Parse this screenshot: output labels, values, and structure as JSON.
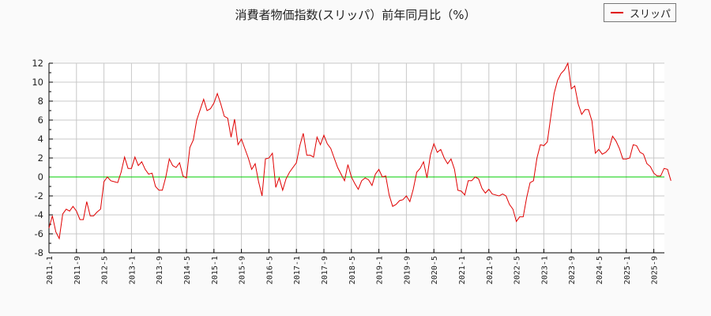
{
  "chart_data": {
    "type": "line",
    "title": "消費者物価指数(スリッパ）前年同月比（%）",
    "xlabel": "",
    "ylabel": "",
    "ylim": [
      -8,
      12
    ],
    "yticks": [
      -8,
      -6,
      -4,
      -2,
      0,
      2,
      4,
      6,
      8,
      10,
      12
    ],
    "xtick_labels": [
      "2011-1",
      "2011-9",
      "2012-5",
      "2013-1",
      "2013-9",
      "2014-5",
      "2015-1",
      "2015-9",
      "2016-5",
      "2017-1",
      "2017-9",
      "2018-5",
      "2019-1",
      "2019-9",
      "2020-5",
      "2021-1",
      "2021-9",
      "2022-5",
      "2023-1",
      "2023-9",
      "2024-5",
      "2025-1",
      "2025-9"
    ],
    "x_start": "2011-1",
    "x_step": "1 month",
    "grid": true,
    "legend_position": "top-right",
    "reference_line": {
      "y": 0,
      "color": "#00cc00"
    },
    "series": [
      {
        "name": "スリッパ",
        "color": "#e00000",
        "values": [
          -5.4,
          -4.1,
          -5.8,
          -6.5,
          -3.9,
          -3.4,
          -3.6,
          -3.1,
          -3.6,
          -4.5,
          -4.5,
          -2.6,
          -4.1,
          -4.1,
          -3.7,
          -3.4,
          -0.5,
          0.0,
          -0.4,
          -0.5,
          -0.6,
          0.5,
          2.1,
          0.9,
          0.9,
          2.1,
          1.2,
          1.6,
          0.8,
          0.3,
          0.4,
          -1.0,
          -1.4,
          -1.4,
          0.0,
          1.9,
          1.2,
          1.0,
          1.5,
          0.1,
          -0.1,
          3.1,
          3.9,
          6.0,
          7.1,
          8.2,
          7.0,
          7.2,
          7.8,
          8.8,
          7.7,
          6.4,
          6.2,
          4.2,
          6.1,
          3.4,
          4.0,
          3.0,
          2.0,
          0.8,
          1.4,
          -0.5,
          -2.0,
          1.9,
          2.0,
          2.5,
          -1.1,
          -0.1,
          -1.4,
          -0.2,
          0.5,
          1.0,
          1.5,
          3.3,
          4.6,
          2.3,
          2.3,
          2.1,
          4.2,
          3.4,
          4.4,
          3.5,
          3.0,
          2.0,
          1.0,
          0.3,
          -0.4,
          1.3,
          0.0,
          -0.7,
          -1.3,
          -0.4,
          -0.1,
          -0.3,
          -0.9,
          0.3,
          0.8,
          0.0,
          0.1,
          -1.9,
          -3.1,
          -2.9,
          -2.5,
          -2.4,
          -2.0,
          -2.6,
          -1.3,
          0.5,
          0.9,
          1.6,
          -0.1,
          2.3,
          3.5,
          2.6,
          2.9,
          2.0,
          1.4,
          1.9,
          0.8,
          -1.4,
          -1.5,
          -1.9,
          -0.4,
          -0.4,
          0.0,
          -0.2,
          -1.2,
          -1.7,
          -1.3,
          -1.8,
          -1.9,
          -2.0,
          -1.8,
          -2.0,
          -2.9,
          -3.4,
          -4.7,
          -4.2,
          -4.2,
          -2.2,
          -0.6,
          -0.4,
          2.0,
          3.4,
          3.3,
          3.7,
          6.3,
          8.8,
          10.2,
          10.9,
          11.3,
          12.0,
          9.3,
          9.6,
          7.7,
          6.6,
          7.1,
          7.1,
          5.9,
          2.5,
          2.9,
          2.4,
          2.6,
          3.0,
          4.3,
          3.8,
          3.0,
          1.9,
          1.9,
          2.0,
          3.4,
          3.3,
          2.6,
          2.4,
          1.4,
          1.1,
          0.4,
          0.1,
          0.1,
          0.9,
          0.8,
          -0.4
        ]
      }
    ]
  },
  "header": {
    "title": "消費者物価指数(スリッパ）前年同月比（%）"
  },
  "legend": {
    "label": "スリッパ"
  }
}
